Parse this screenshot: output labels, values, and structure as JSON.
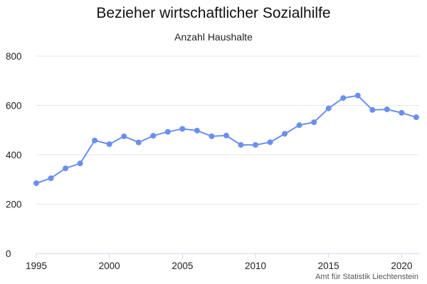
{
  "chart_data": {
    "type": "line",
    "title": "Bezieher wirtschaftlicher Sozialhilfe",
    "subtitle": "Anzahl Haushalte",
    "credit": "Amt für Statistik Liechtenstein",
    "xlabel": "",
    "ylabel": "",
    "xlim": [
      1995,
      2021.2
    ],
    "ylim": [
      0,
      800
    ],
    "x_ticks": [
      1995,
      2000,
      2005,
      2010,
      2015,
      2020
    ],
    "y_ticks": [
      0,
      200,
      400,
      600,
      800
    ],
    "grid": true,
    "legend": "none",
    "color": "#6a8ff0",
    "x": [
      1995,
      1996,
      1997,
      1998,
      1999,
      2000,
      2001,
      2002,
      2003,
      2004,
      2005,
      2006,
      2007,
      2008,
      2009,
      2010,
      2011,
      2012,
      2013,
      2014,
      2015,
      2016,
      2017,
      2018,
      2019,
      2020,
      2021
    ],
    "values": [
      285,
      305,
      345,
      365,
      458,
      443,
      475,
      450,
      477,
      493,
      505,
      498,
      475,
      478,
      440,
      440,
      451,
      485,
      520,
      532,
      588,
      630,
      640,
      582,
      584,
      570,
      552
    ]
  }
}
